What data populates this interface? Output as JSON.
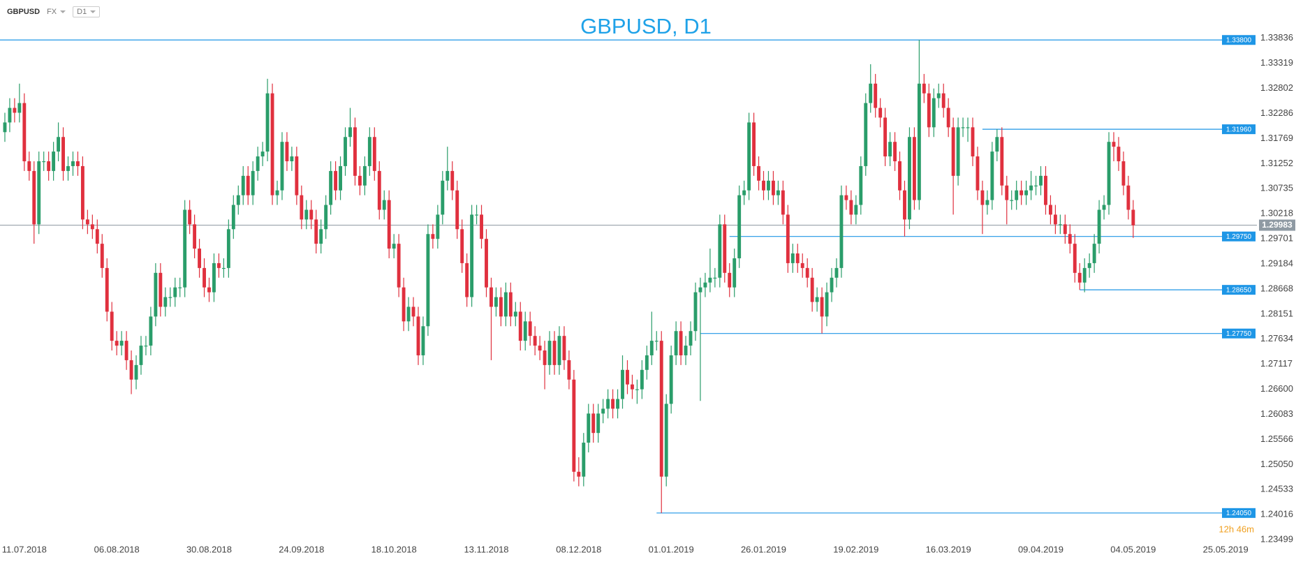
{
  "toolbar": {
    "symbol": "GBPUSD",
    "market": "FX",
    "timeframe": "D1"
  },
  "chart_data": {
    "type": "candlestick",
    "title": "GBPUSD, D1",
    "up_color": "#2a9d6a",
    "down_color": "#e0303e",
    "level_color": "#1e96e6",
    "last_color": "#8f9aa3",
    "xlim": [
      -1,
      256
    ],
    "xticks": [
      {
        "value": 4,
        "label": "11.07.2018"
      },
      {
        "value": 23,
        "label": "06.08.2018"
      },
      {
        "value": 42,
        "label": "30.08.2018"
      },
      {
        "value": 61,
        "label": "24.09.2018"
      },
      {
        "value": 80,
        "label": "18.10.2018"
      },
      {
        "value": 99,
        "label": "13.11.2018"
      },
      {
        "value": 118,
        "label": "08.12.2018"
      },
      {
        "value": 137,
        "label": "01.01.2019"
      },
      {
        "value": 156,
        "label": "26.01.2019"
      },
      {
        "value": 175,
        "label": "19.02.2019"
      },
      {
        "value": 194,
        "label": "16.03.2019"
      },
      {
        "value": 213,
        "label": "09.04.2019"
      },
      {
        "value": 232,
        "label": "04.05.2019"
      },
      {
        "value": 251,
        "label": "25.05.2019"
      }
    ],
    "ylim": [
      1.234,
      1.3448
    ],
    "yticks": [
      1.33836,
      1.33319,
      1.32802,
      1.32286,
      1.31769,
      1.31252,
      1.30735,
      1.30218,
      1.29701,
      1.29184,
      1.28668,
      1.28151,
      1.27634,
      1.27117,
      {
        "value": 1.266,
        "label": "1.26600"
      },
      1.26083,
      1.25566,
      {
        "value": 1.2505,
        "label": "1.25050"
      },
      1.24533,
      1.24016,
      1.23499
    ],
    "levels": [
      {
        "value": 1.338,
        "label": "1.33800"
      },
      {
        "value": 1.3196,
        "label": "1.31960"
      },
      {
        "value": 1.2975,
        "label": "1.29750"
      },
      {
        "value": 1.2865,
        "label": "1.28650"
      },
      {
        "value": 1.2775,
        "label": "1.27750"
      },
      {
        "value": 1.2405,
        "label": "1.24050"
      }
    ],
    "last_price": 1.29983,
    "countdown": "12h 46m",
    "ohlc": [
      [
        1.319,
        1.323,
        1.317,
        1.321
      ],
      [
        1.321,
        1.326,
        1.319,
        1.324
      ],
      [
        1.324,
        1.326,
        1.321,
        1.323
      ],
      [
        1.323,
        1.329,
        1.321,
        1.325
      ],
      [
        1.325,
        1.327,
        1.311,
        1.313
      ],
      [
        1.313,
        1.315,
        1.309,
        1.311
      ],
      [
        1.311,
        1.313,
        1.296,
        1.3
      ],
      [
        1.3,
        1.315,
        1.298,
        1.313
      ],
      [
        1.313,
        1.315,
        1.311,
        1.313
      ],
      [
        1.313,
        1.315,
        1.309,
        1.311
      ],
      [
        1.311,
        1.317,
        1.309,
        1.315
      ],
      [
        1.315,
        1.321,
        1.313,
        1.318
      ],
      [
        1.318,
        1.32,
        1.309,
        1.311
      ],
      [
        1.311,
        1.314,
        1.309,
        1.312
      ],
      [
        1.312,
        1.315,
        1.31,
        1.313
      ],
      [
        1.313,
        1.315,
        1.31,
        1.312
      ],
      [
        1.312,
        1.314,
        1.299,
        1.301
      ],
      [
        1.301,
        1.303,
        1.298,
        1.3
      ],
      [
        1.3,
        1.302,
        1.297,
        1.299
      ],
      [
        1.299,
        1.301,
        1.294,
        1.296
      ],
      [
        1.296,
        1.298,
        1.289,
        1.291
      ],
      [
        1.291,
        1.293,
        1.28,
        1.282
      ],
      [
        1.282,
        1.284,
        1.274,
        1.276
      ],
      [
        1.276,
        1.278,
        1.273,
        1.275
      ],
      [
        1.275,
        1.278,
        1.273,
        1.276
      ],
      [
        1.276,
        1.278,
        1.27,
        1.272
      ],
      [
        1.272,
        1.274,
        1.265,
        1.268
      ],
      [
        1.268,
        1.273,
        1.266,
        1.271
      ],
      [
        1.271,
        1.277,
        1.269,
        1.275
      ],
      [
        1.275,
        1.277,
        1.273,
        1.275
      ],
      [
        1.275,
        1.283,
        1.273,
        1.281
      ],
      [
        1.281,
        1.292,
        1.279,
        1.29
      ],
      [
        1.29,
        1.292,
        1.281,
        1.283
      ],
      [
        1.283,
        1.287,
        1.281,
        1.285
      ],
      [
        1.285,
        1.287,
        1.283,
        1.285
      ],
      [
        1.285,
        1.289,
        1.283,
        1.287
      ],
      [
        1.287,
        1.289,
        1.285,
        1.287
      ],
      [
        1.287,
        1.305,
        1.285,
        1.303
      ],
      [
        1.303,
        1.305,
        1.298,
        1.3
      ],
      [
        1.3,
        1.302,
        1.293,
        1.295
      ],
      [
        1.295,
        1.297,
        1.289,
        1.291
      ],
      [
        1.291,
        1.293,
        1.285,
        1.287
      ],
      [
        1.287,
        1.289,
        1.284,
        1.286
      ],
      [
        1.286,
        1.294,
        1.284,
        1.292
      ],
      [
        1.292,
        1.294,
        1.289,
        1.291
      ],
      [
        1.291,
        1.293,
        1.289,
        1.291
      ],
      [
        1.291,
        1.301,
        1.289,
        1.299
      ],
      [
        1.299,
        1.306,
        1.297,
        1.304
      ],
      [
        1.304,
        1.308,
        1.302,
        1.306
      ],
      [
        1.306,
        1.312,
        1.304,
        1.31
      ],
      [
        1.31,
        1.312,
        1.304,
        1.306
      ],
      [
        1.306,
        1.313,
        1.304,
        1.311
      ],
      [
        1.311,
        1.316,
        1.309,
        1.314
      ],
      [
        1.314,
        1.317,
        1.312,
        1.315
      ],
      [
        1.315,
        1.33,
        1.313,
        1.327
      ],
      [
        1.327,
        1.329,
        1.304,
        1.306
      ],
      [
        1.306,
        1.309,
        1.304,
        1.307
      ],
      [
        1.307,
        1.319,
        1.305,
        1.317
      ],
      [
        1.317,
        1.319,
        1.311,
        1.313
      ],
      [
        1.313,
        1.316,
        1.311,
        1.314
      ],
      [
        1.314,
        1.316,
        1.304,
        1.306
      ],
      [
        1.306,
        1.308,
        1.299,
        1.301
      ],
      [
        1.301,
        1.305,
        1.299,
        1.303
      ],
      [
        1.303,
        1.305,
        1.299,
        1.301
      ],
      [
        1.301,
        1.303,
        1.294,
        1.296
      ],
      [
        1.296,
        1.301,
        1.294,
        1.299
      ],
      [
        1.299,
        1.306,
        1.297,
        1.304
      ],
      [
        1.304,
        1.313,
        1.302,
        1.311
      ],
      [
        1.311,
        1.313,
        1.305,
        1.307
      ],
      [
        1.307,
        1.314,
        1.305,
        1.312
      ],
      [
        1.312,
        1.32,
        1.31,
        1.318
      ],
      [
        1.318,
        1.324,
        1.316,
        1.32
      ],
      [
        1.32,
        1.322,
        1.308,
        1.31
      ],
      [
        1.31,
        1.312,
        1.306,
        1.308
      ],
      [
        1.308,
        1.314,
        1.306,
        1.312
      ],
      [
        1.312,
        1.32,
        1.31,
        1.318
      ],
      [
        1.318,
        1.32,
        1.309,
        1.311
      ],
      [
        1.311,
        1.313,
        1.301,
        1.303
      ],
      [
        1.303,
        1.307,
        1.301,
        1.305
      ],
      [
        1.305,
        1.307,
        1.293,
        1.295
      ],
      [
        1.295,
        1.298,
        1.293,
        1.296
      ],
      [
        1.296,
        1.298,
        1.285,
        1.287
      ],
      [
        1.287,
        1.289,
        1.278,
        1.28
      ],
      [
        1.28,
        1.285,
        1.278,
        1.283
      ],
      [
        1.283,
        1.285,
        1.279,
        1.281
      ],
      [
        1.281,
        1.283,
        1.271,
        1.273
      ],
      [
        1.273,
        1.281,
        1.271,
        1.279
      ],
      [
        1.279,
        1.3,
        1.277,
        1.298
      ],
      [
        1.298,
        1.3,
        1.295,
        1.297
      ],
      [
        1.297,
        1.304,
        1.295,
        1.302
      ],
      [
        1.302,
        1.311,
        1.3,
        1.309
      ],
      [
        1.309,
        1.316,
        1.307,
        1.311
      ],
      [
        1.311,
        1.313,
        1.305,
        1.307
      ],
      [
        1.307,
        1.309,
        1.297,
        1.299
      ],
      [
        1.299,
        1.301,
        1.29,
        1.292
      ],
      [
        1.292,
        1.294,
        1.283,
        1.285
      ],
      [
        1.285,
        1.304,
        1.283,
        1.302
      ],
      [
        1.302,
        1.304,
        1.3,
        1.302
      ],
      [
        1.302,
        1.304,
        1.295,
        1.297
      ],
      [
        1.297,
        1.299,
        1.285,
        1.287
      ],
      [
        1.287,
        1.289,
        1.272,
        1.283
      ],
      [
        1.283,
        1.287,
        1.281,
        1.285
      ],
      [
        1.285,
        1.287,
        1.279,
        1.281
      ],
      [
        1.281,
        1.288,
        1.279,
        1.286
      ],
      [
        1.286,
        1.288,
        1.279,
        1.281
      ],
      [
        1.281,
        1.284,
        1.279,
        1.282
      ],
      [
        1.282,
        1.284,
        1.274,
        1.276
      ],
      [
        1.276,
        1.282,
        1.274,
        1.28
      ],
      [
        1.28,
        1.282,
        1.275,
        1.277
      ],
      [
        1.277,
        1.279,
        1.273,
        1.275
      ],
      [
        1.275,
        1.277,
        1.272,
        1.274
      ],
      [
        1.274,
        1.276,
        1.266,
        1.271
      ],
      [
        1.271,
        1.278,
        1.269,
        1.276
      ],
      [
        1.276,
        1.278,
        1.269,
        1.271
      ],
      [
        1.271,
        1.279,
        1.269,
        1.277
      ],
      [
        1.277,
        1.279,
        1.27,
        1.272
      ],
      [
        1.272,
        1.274,
        1.266,
        1.268
      ],
      [
        1.268,
        1.27,
        1.247,
        1.249
      ],
      [
        1.249,
        1.252,
        1.246,
        1.248
      ],
      [
        1.248,
        1.257,
        1.246,
        1.255
      ],
      [
        1.255,
        1.263,
        1.253,
        1.261
      ],
      [
        1.261,
        1.263,
        1.255,
        1.257
      ],
      [
        1.257,
        1.263,
        1.255,
        1.261
      ],
      [
        1.261,
        1.264,
        1.259,
        1.262
      ],
      [
        1.262,
        1.266,
        1.26,
        1.264
      ],
      [
        1.264,
        1.266,
        1.26,
        1.262
      ],
      [
        1.262,
        1.266,
        1.26,
        1.264
      ],
      [
        1.264,
        1.273,
        1.262,
        1.27
      ],
      [
        1.27,
        1.272,
        1.265,
        1.267
      ],
      [
        1.267,
        1.269,
        1.264,
        1.266
      ],
      [
        1.266,
        1.268,
        1.263,
        1.266
      ],
      [
        1.266,
        1.272,
        1.264,
        1.27
      ],
      [
        1.27,
        1.275,
        1.268,
        1.273
      ],
      [
        1.273,
        1.282,
        1.271,
        1.276
      ],
      [
        1.276,
        1.278,
        1.274,
        1.276
      ],
      [
        1.276,
        1.278,
        1.2405,
        1.248
      ],
      [
        1.248,
        1.265,
        1.246,
        1.263
      ],
      [
        1.263,
        1.275,
        1.261,
        1.273
      ],
      [
        1.273,
        1.28,
        1.271,
        1.278
      ],
      [
        1.278,
        1.28,
        1.271,
        1.273
      ],
      [
        1.273,
        1.277,
        1.271,
        1.275
      ],
      [
        1.275,
        1.28,
        1.273,
        1.278
      ],
      [
        1.278,
        1.288,
        1.276,
        1.286
      ],
      [
        1.286,
        1.289,
        1.2636,
        1.287
      ],
      [
        1.287,
        1.29,
        1.285,
        1.288
      ],
      [
        1.288,
        1.295,
        1.286,
        1.289
      ],
      [
        1.289,
        1.291,
        1.287,
        1.289
      ],
      [
        1.289,
        1.302,
        1.287,
        1.3
      ],
      [
        1.3,
        1.302,
        1.288,
        1.29
      ],
      [
        1.29,
        1.292,
        1.285,
        1.287
      ],
      [
        1.287,
        1.295,
        1.285,
        1.293
      ],
      [
        1.293,
        1.308,
        1.291,
        1.306
      ],
      [
        1.306,
        1.309,
        1.304,
        1.307
      ],
      [
        1.307,
        1.323,
        1.305,
        1.321
      ],
      [
        1.321,
        1.323,
        1.31,
        1.312
      ],
      [
        1.312,
        1.314,
        1.307,
        1.309
      ],
      [
        1.309,
        1.311,
        1.305,
        1.307
      ],
      [
        1.307,
        1.311,
        1.305,
        1.309
      ],
      [
        1.309,
        1.311,
        1.304,
        1.306
      ],
      [
        1.306,
        1.309,
        1.304,
        1.307
      ],
      [
        1.307,
        1.309,
        1.3,
        1.302
      ],
      [
        1.302,
        1.304,
        1.29,
        1.292
      ],
      [
        1.292,
        1.296,
        1.29,
        1.294
      ],
      [
        1.294,
        1.296,
        1.29,
        1.292
      ],
      [
        1.292,
        1.294,
        1.289,
        1.291
      ],
      [
        1.291,
        1.293,
        1.287,
        1.289
      ],
      [
        1.289,
        1.291,
        1.282,
        1.284
      ],
      [
        1.284,
        1.287,
        1.282,
        1.285
      ],
      [
        1.285,
        1.287,
        1.2775,
        1.281
      ],
      [
        1.281,
        1.288,
        1.279,
        1.286
      ],
      [
        1.286,
        1.291,
        1.284,
        1.289
      ],
      [
        1.289,
        1.293,
        1.287,
        1.291
      ],
      [
        1.291,
        1.308,
        1.289,
        1.306
      ],
      [
        1.306,
        1.308,
        1.303,
        1.305
      ],
      [
        1.305,
        1.307,
        1.3,
        1.302
      ],
      [
        1.302,
        1.306,
        1.3,
        1.304
      ],
      [
        1.304,
        1.314,
        1.302,
        1.312
      ],
      [
        1.312,
        1.327,
        1.31,
        1.325
      ],
      [
        1.325,
        1.333,
        1.323,
        1.329
      ],
      [
        1.329,
        1.331,
        1.322,
        1.324
      ],
      [
        1.324,
        1.326,
        1.32,
        1.322
      ],
      [
        1.322,
        1.324,
        1.312,
        1.314
      ],
      [
        1.314,
        1.319,
        1.312,
        1.317
      ],
      [
        1.317,
        1.319,
        1.311,
        1.313
      ],
      [
        1.313,
        1.315,
        1.305,
        1.307
      ],
      [
        1.307,
        1.309,
        1.2975,
        1.301
      ],
      [
        1.301,
        1.32,
        1.299,
        1.318
      ],
      [
        1.318,
        1.32,
        1.303,
        1.305
      ],
      [
        1.305,
        1.338,
        1.303,
        1.329
      ],
      [
        1.329,
        1.331,
        1.325,
        1.327
      ],
      [
        1.327,
        1.329,
        1.318,
        1.32
      ],
      [
        1.32,
        1.328,
        1.318,
        1.326
      ],
      [
        1.326,
        1.329,
        1.324,
        1.327
      ],
      [
        1.327,
        1.329,
        1.322,
        1.324
      ],
      [
        1.324,
        1.326,
        1.318,
        1.32
      ],
      [
        1.32,
        1.322,
        1.302,
        1.31
      ],
      [
        1.31,
        1.322,
        1.308,
        1.32
      ],
      [
        1.32,
        1.322,
        1.318,
        1.32
      ],
      [
        1.32,
        1.322,
        1.317,
        1.32
      ],
      [
        1.32,
        1.322,
        1.312,
        1.314
      ],
      [
        1.314,
        1.316,
        1.305,
        1.307
      ],
      [
        1.307,
        1.309,
        1.298,
        1.304
      ],
      [
        1.304,
        1.307,
        1.302,
        1.305
      ],
      [
        1.305,
        1.317,
        1.303,
        1.315
      ],
      [
        1.315,
        1.3196,
        1.313,
        1.318
      ],
      [
        1.318,
        1.32,
        1.306,
        1.308
      ],
      [
        1.308,
        1.31,
        1.3,
        1.305
      ],
      [
        1.305,
        1.307,
        1.303,
        1.305
      ],
      [
        1.305,
        1.309,
        1.303,
        1.307
      ],
      [
        1.307,
        1.309,
        1.304,
        1.306
      ],
      [
        1.306,
        1.309,
        1.304,
        1.307
      ],
      [
        1.307,
        1.311,
        1.305,
        1.308
      ],
      [
        1.308,
        1.31,
        1.306,
        1.308
      ],
      [
        1.308,
        1.312,
        1.306,
        1.31
      ],
      [
        1.31,
        1.312,
        1.302,
        1.304
      ],
      [
        1.304,
        1.306,
        1.3,
        1.302
      ],
      [
        1.302,
        1.304,
        1.298,
        1.3
      ],
      [
        1.3,
        1.302,
        1.298,
        1.3
      ],
      [
        1.3,
        1.302,
        1.296,
        1.298
      ],
      [
        1.298,
        1.3,
        1.294,
        1.296
      ],
      [
        1.296,
        1.298,
        1.288,
        1.29
      ],
      [
        1.29,
        1.292,
        1.2865,
        1.288
      ],
      [
        1.288,
        1.293,
        1.286,
        1.291
      ],
      [
        1.291,
        1.294,
        1.289,
        1.292
      ],
      [
        1.292,
        1.298,
        1.29,
        1.296
      ],
      [
        1.296,
        1.305,
        1.294,
        1.303
      ],
      [
        1.303,
        1.306,
        1.301,
        1.304
      ],
      [
        1.304,
        1.319,
        1.302,
        1.317
      ],
      [
        1.317,
        1.319,
        1.313,
        1.316
      ],
      [
        1.316,
        1.318,
        1.311,
        1.313
      ],
      [
        1.313,
        1.315,
        1.306,
        1.308
      ],
      [
        1.308,
        1.31,
        1.301,
        1.303
      ],
      [
        1.303,
        1.305,
        1.2972,
        1.2998
      ]
    ]
  }
}
